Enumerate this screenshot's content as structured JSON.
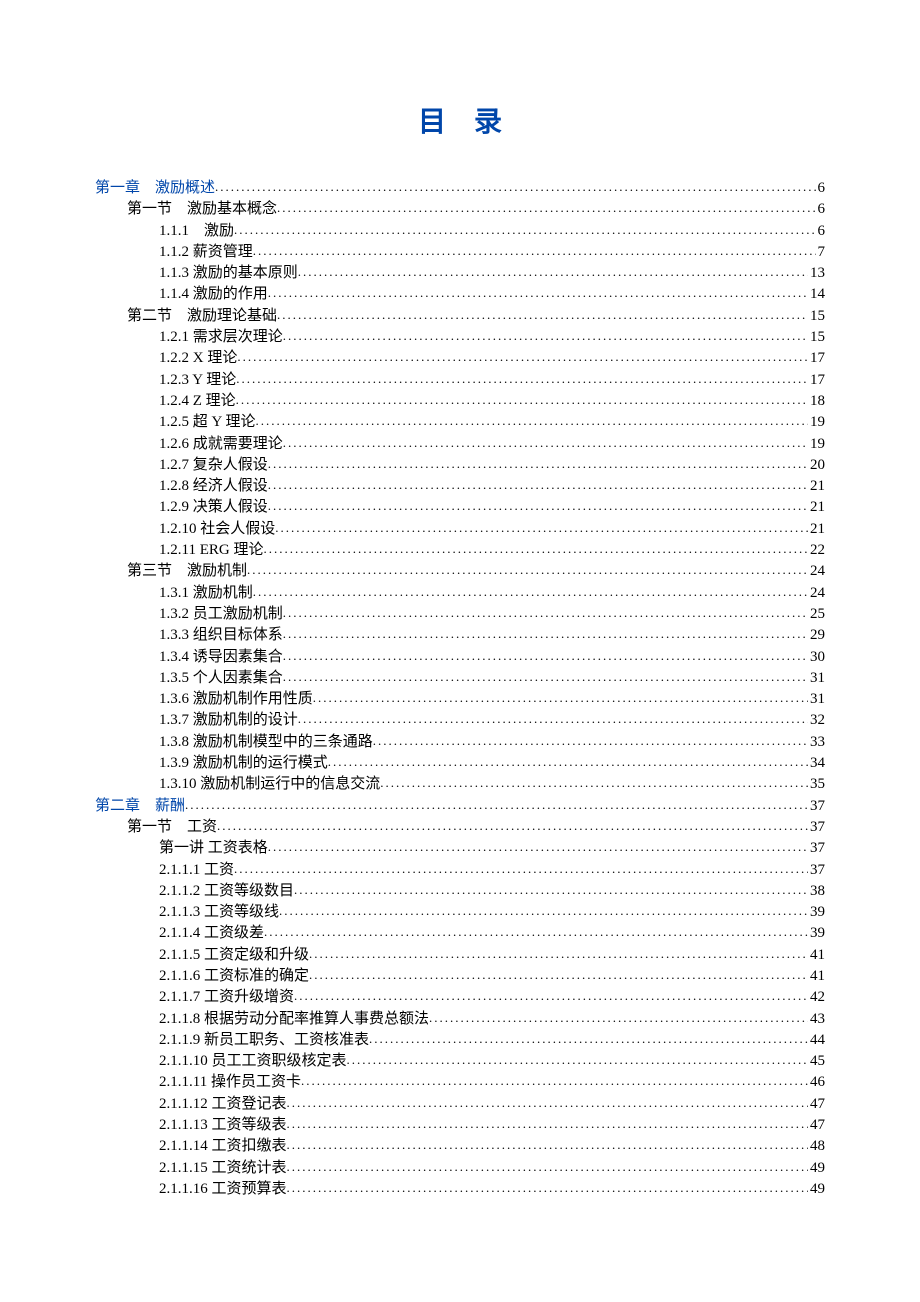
{
  "title": "目录",
  "colors": {
    "accent": "#0046aa",
    "text": "#000000",
    "background": "#ffffff"
  },
  "toc": [
    {
      "indent": 0,
      "label": "第一章　激励概述",
      "page": "6",
      "blue": true
    },
    {
      "indent": 1,
      "label": "第一节　激励基本概念",
      "page": "6",
      "blue": false
    },
    {
      "indent": 2,
      "label": "1.1.1　激励",
      "page": "6",
      "blue": false
    },
    {
      "indent": 2,
      "label": "1.1.2 薪资管理",
      "page": "7",
      "blue": false
    },
    {
      "indent": 2,
      "label": "1.1.3 激励的基本原则",
      "page": "13",
      "blue": false
    },
    {
      "indent": 2,
      "label": "1.1.4 激励的作用",
      "page": "14",
      "blue": false
    },
    {
      "indent": 1,
      "label": "第二节　激励理论基础",
      "page": "15",
      "blue": false
    },
    {
      "indent": 2,
      "label": "1.2.1 需求层次理论",
      "page": "15",
      "blue": false
    },
    {
      "indent": 2,
      "label": "1.2.2 X 理论",
      "page": "17",
      "blue": false
    },
    {
      "indent": 2,
      "label": "1.2.3 Y 理论",
      "page": "17",
      "blue": false
    },
    {
      "indent": 2,
      "label": "1.2.4 Z 理论",
      "page": "18",
      "blue": false
    },
    {
      "indent": 2,
      "label": "1.2.5 超 Y 理论",
      "page": "19",
      "blue": false
    },
    {
      "indent": 2,
      "label": "1.2.6 成就需要理论",
      "page": "19",
      "blue": false
    },
    {
      "indent": 2,
      "label": "1.2.7 复杂人假设",
      "page": "20",
      "blue": false
    },
    {
      "indent": 2,
      "label": "1.2.8 经济人假设",
      "page": "21",
      "blue": false
    },
    {
      "indent": 2,
      "label": "1.2.9 决策人假设",
      "page": "21",
      "blue": false
    },
    {
      "indent": 2,
      "label": "1.2.10 社会人假设",
      "page": "21",
      "blue": false
    },
    {
      "indent": 2,
      "label": "1.2.11 ERG 理论",
      "page": "22",
      "blue": false
    },
    {
      "indent": 1,
      "label": "第三节　激励机制",
      "page": "24",
      "blue": false
    },
    {
      "indent": 2,
      "label": "1.3.1 激励机制",
      "page": "24",
      "blue": false
    },
    {
      "indent": 2,
      "label": "1.3.2 员工激励机制",
      "page": "25",
      "blue": false
    },
    {
      "indent": 2,
      "label": "1.3.3 组织目标体系",
      "page": "29",
      "blue": false
    },
    {
      "indent": 2,
      "label": "1.3.4 诱导因素集合",
      "page": "30",
      "blue": false
    },
    {
      "indent": 2,
      "label": "1.3.5 个人因素集合",
      "page": "31",
      "blue": false
    },
    {
      "indent": 2,
      "label": "1.3.6 激励机制作用性质",
      "page": "31",
      "blue": false
    },
    {
      "indent": 2,
      "label": "1.3.7 激励机制的设计",
      "page": "32",
      "blue": false
    },
    {
      "indent": 2,
      "label": "1.3.8 激励机制模型中的三条通路",
      "page": "33",
      "blue": false
    },
    {
      "indent": 2,
      "label": "1.3.9 激励机制的运行模式",
      "page": "34",
      "blue": false
    },
    {
      "indent": 2,
      "label": "1.3.10 激励机制运行中的信息交流",
      "page": "35",
      "blue": false
    },
    {
      "indent": 0,
      "label": "第二章　薪酬",
      "page": "37",
      "blue": true
    },
    {
      "indent": 1,
      "label": "第一节　工资",
      "page": "37",
      "blue": false
    },
    {
      "indent": 2,
      "label": "第一讲 工资表格",
      "page": "37",
      "blue": false
    },
    {
      "indent": 2,
      "label": "2.1.1.1 工资",
      "page": "37",
      "blue": false
    },
    {
      "indent": 2,
      "label": "2.1.1.2 工资等级数目",
      "page": "38",
      "blue": false
    },
    {
      "indent": 2,
      "label": "2.1.1.3 工资等级线",
      "page": "39",
      "blue": false
    },
    {
      "indent": 2,
      "label": "2.1.1.4 工资级差",
      "page": "39",
      "blue": false
    },
    {
      "indent": 2,
      "label": "2.1.1.5 工资定级和升级",
      "page": "41",
      "blue": false
    },
    {
      "indent": 2,
      "label": "2.1.1.6 工资标准的确定",
      "page": "41",
      "blue": false
    },
    {
      "indent": 2,
      "label": "2.1.1.7 工资升级增资",
      "page": "42",
      "blue": false
    },
    {
      "indent": 2,
      "label": "2.1.1.8 根据劳动分配率推算人事费总额法",
      "page": "43",
      "blue": false
    },
    {
      "indent": 2,
      "label": "2.1.1.9 新员工职务、工资核准表",
      "page": "44",
      "blue": false
    },
    {
      "indent": 2,
      "label": "2.1.1.10 员工工资职级核定表",
      "page": "45",
      "blue": false
    },
    {
      "indent": 2,
      "label": "2.1.1.11 操作员工资卡",
      "page": "46",
      "blue": false
    },
    {
      "indent": 2,
      "label": "2.1.1.12 工资登记表",
      "page": "47",
      "blue": false
    },
    {
      "indent": 2,
      "label": "2.1.1.13 工资等级表",
      "page": "47",
      "blue": false
    },
    {
      "indent": 2,
      "label": "2.1.1.14 工资扣缴表",
      "page": "48",
      "blue": false
    },
    {
      "indent": 2,
      "label": "2.1.1.15 工资统计表",
      "page": "49",
      "blue": false
    },
    {
      "indent": 2,
      "label": "2.1.1.16 工资预算表",
      "page": "49",
      "blue": false
    }
  ]
}
